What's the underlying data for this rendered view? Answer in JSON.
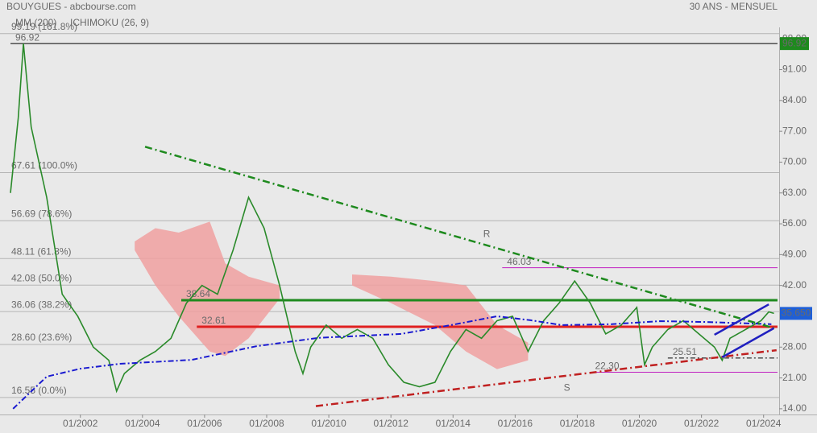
{
  "chart_data": {
    "type": "line",
    "title": "BOUYGUES - abcbourse.com",
    "subtitle": "30 ANS - MENSUEL",
    "xlim": [
      "1999-10",
      "2024-07"
    ],
    "ylim": [
      12.7,
      100.6
    ],
    "xticks": [
      {
        "value": "2002-01",
        "label": "01/2002"
      },
      {
        "value": "2004-01",
        "label": "01/2004"
      },
      {
        "value": "2006-01",
        "label": "01/2006"
      },
      {
        "value": "2008-01",
        "label": "01/2008"
      },
      {
        "value": "2010-01",
        "label": "01/2010"
      },
      {
        "value": "2012-01",
        "label": "01/2012"
      },
      {
        "value": "2014-01",
        "label": "01/2014"
      },
      {
        "value": "2016-01",
        "label": "01/2016"
      },
      {
        "value": "2018-01",
        "label": "01/2018"
      },
      {
        "value": "2020-01",
        "label": "01/2020"
      },
      {
        "value": "2022-01",
        "label": "01/2022"
      },
      {
        "value": "2024-01",
        "label": "01/2024"
      }
    ],
    "yticks": [
      {
        "value": 98,
        "label": "98.00"
      },
      {
        "value": 91,
        "label": "91.00"
      },
      {
        "value": 84,
        "label": "84.00"
      },
      {
        "value": 77,
        "label": "77.00"
      },
      {
        "value": 70,
        "label": "70.00"
      },
      {
        "value": 63,
        "label": "63.00"
      },
      {
        "value": 56,
        "label": "56.00"
      },
      {
        "value": 49,
        "label": "49.00"
      },
      {
        "value": 42,
        "label": "42.00"
      },
      {
        "value": 28,
        "label": "28.00"
      },
      {
        "value": 21,
        "label": "21.00"
      },
      {
        "value": 14,
        "label": "14.00"
      }
    ],
    "color": "#2a8a2a",
    "x": [
      "1999-10",
      "2000-01",
      "2000-03",
      "2000-06",
      "2000-12",
      "2001-06",
      "2001-12",
      "2002-06",
      "2002-12",
      "2003-03",
      "2003-06",
      "2003-12",
      "2004-06",
      "2004-12",
      "2005-06",
      "2005-12",
      "2006-06",
      "2006-12",
      "2007-06",
      "2007-12",
      "2008-06",
      "2008-12",
      "2009-03",
      "2009-06",
      "2009-12",
      "2010-06",
      "2010-12",
      "2011-06",
      "2011-12",
      "2012-06",
      "2012-12",
      "2013-06",
      "2013-12",
      "2014-06",
      "2014-12",
      "2015-06",
      "2015-12",
      "2016-06",
      "2016-12",
      "2017-06",
      "2017-12",
      "2018-06",
      "2018-12",
      "2019-06",
      "2019-12",
      "2020-03",
      "2020-06",
      "2020-12",
      "2021-06",
      "2021-12",
      "2022-06",
      "2022-09",
      "2022-12",
      "2023-06",
      "2023-12",
      "2024-03",
      "2024-05"
    ],
    "values": [
      63,
      80,
      96.92,
      78,
      62,
      40,
      35,
      28,
      25,
      18,
      22,
      25,
      27,
      30,
      38,
      42,
      40,
      50,
      62,
      55,
      42,
      27,
      22,
      28,
      33,
      30,
      32,
      30,
      24,
      20,
      19,
      20,
      27,
      32,
      30,
      34,
      35,
      27,
      34,
      38,
      43,
      38,
      31,
      33,
      37,
      24,
      28,
      32,
      34,
      31,
      28,
      25,
      30,
      32,
      34,
      36,
      35.65
    ],
    "last_price": {
      "value": 35.65,
      "label": "35.650",
      "color": "#1f5fd6"
    },
    "moving_average": {
      "name": "MM (200)",
      "color": "#1a1ad0",
      "x": [
        "1999-11",
        "2000-12",
        "2002-01",
        "2003-04",
        "2005-08",
        "2007-09",
        "2009-09",
        "2012-05",
        "2014-02",
        "2015-06",
        "2016-07",
        "2017-07",
        "2019-02",
        "2020-09",
        "2022-03",
        "2024-04"
      ],
      "values": [
        14.0,
        21.3,
        23.1,
        24.2,
        25.1,
        28.2,
        30.1,
        31.0,
        33.2,
        35.0,
        34.1,
        33.0,
        33.2,
        33.9,
        33.7,
        33.2
      ]
    },
    "ichimoku": {
      "name": "ICHIMOKU (26, 9)",
      "color": "#1f5fd6",
      "fill": "#f0a0a0",
      "segments": [
        {
          "x": [
            "2003-10",
            "2004-06",
            "2005-03",
            "2006-03",
            "2006-09",
            "2007-06",
            "2008-06"
          ],
          "upper": [
            52,
            55,
            54,
            56.5,
            47,
            44,
            42
          ],
          "lower": [
            50,
            42,
            35,
            27,
            26,
            30,
            39
          ]
        },
        {
          "x": [
            "2010-10",
            "2012-01",
            "2013-06",
            "2014-06",
            "2015-06",
            "2016-06"
          ],
          "upper": [
            44.5,
            44,
            43,
            42,
            33,
            29
          ],
          "lower": [
            42,
            38,
            33,
            27,
            23,
            25
          ]
        }
      ]
    },
    "fib_levels": [
      {
        "value": 99.19,
        "label": "99.19  (161.8%)"
      },
      {
        "value": 67.61,
        "label": "67.61  (100.0%)"
      },
      {
        "value": 56.69,
        "label": "56.69  (78.6%)"
      },
      {
        "value": 48.11,
        "label": "48.11  (61.8%)"
      },
      {
        "value": 42.08,
        "label": "42.08  (50.0%)"
      },
      {
        "value": 36.06,
        "label": "36.06  (38.2%)"
      },
      {
        "value": 28.6,
        "label": "28.60  (23.6%)"
      },
      {
        "value": 16.55,
        "label": "16.55  (0.0%)"
      }
    ],
    "levels": [
      {
        "value": 96.92,
        "label": "96.92",
        "color": "#000000",
        "from": "1999-10",
        "width": 1,
        "box": "#1e8a1e"
      },
      {
        "value": 38.64,
        "label": "38.64",
        "color": "#1e8a1e",
        "from": "2005-04",
        "width": 3
      },
      {
        "value": 32.61,
        "label": "32.61",
        "color": "#e02020",
        "from": "2005-10",
        "width": 3
      },
      {
        "value": 46.03,
        "label": "46.03",
        "color": "#c020c0",
        "from": "2015-08",
        "width": 1
      },
      {
        "value": 22.3,
        "label": "22.30",
        "color": "#c020c0",
        "from": "2018-06",
        "width": 1
      },
      {
        "value": 25.51,
        "label": "25.51",
        "color": "#000000",
        "from": "2020-12",
        "width": 1,
        "dash": true
      }
    ],
    "trendlines": [
      {
        "from": [
          "2004-02",
          73.5
        ],
        "to": [
          "2024-05",
          32.3
        ],
        "color": "#1e8a1e",
        "dash": true
      },
      {
        "from": [
          "2009-08",
          14.6
        ],
        "to": [
          "2024-06",
          27.3
        ],
        "color": "#c02020",
        "dash": true
      },
      {
        "from": [
          "2022-06",
          30.8
        ],
        "to": [
          "2024-03",
          37.7
        ],
        "color": "#2020c0",
        "dash": false
      },
      {
        "from": [
          "2022-09",
          25.7
        ],
        "to": [
          "2024-05",
          32.3
        ],
        "color": "#2020c0",
        "dash": false
      }
    ],
    "annotations": [
      {
        "text": "R",
        "x": "2015-02",
        "y": 53.6
      },
      {
        "text": "S",
        "x": "2017-09",
        "y": 18.7
      }
    ]
  }
}
